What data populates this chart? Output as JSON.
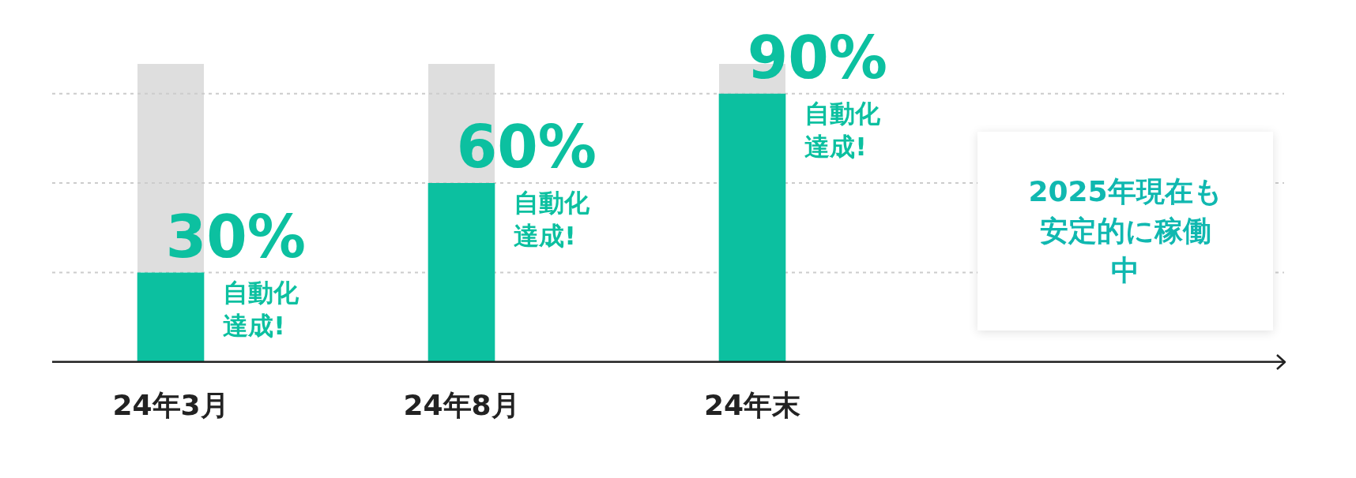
{
  "chart_data": {
    "type": "bar",
    "categories": [
      "24年3月",
      "24年8月",
      "24年末",
      null
    ],
    "series": [
      {
        "color": "#0cc0a0",
        "values": [
          30,
          60,
          90,
          null
        ],
        "value_labels": [
          "30%",
          "60%",
          "90%",
          null
        ]
      }
    ],
    "ref_lines": [
      {
        "axis": "y",
        "value": 30,
        "color": "#cccccc",
        "line_style": "dotted"
      },
      {
        "axis": "y",
        "value": 60,
        "color": "#cccccc",
        "line_style": "dotted"
      },
      {
        "axis": "y",
        "value": 90,
        "color": "#cccccc",
        "line_style": "dotted"
      }
    ],
    "tick_labels": "x",
    "annotations": [
      {
        "text": "自動化達成!",
        "x": "24年3月",
        "y": 30
      },
      {
        "text": "自動化達成!",
        "x": "24年8月",
        "y": 60
      },
      {
        "text": "自動化達成!",
        "x": "24年末",
        "y": 90
      },
      "2025年現在も安定的に稼働中"
    ]
  }
}
